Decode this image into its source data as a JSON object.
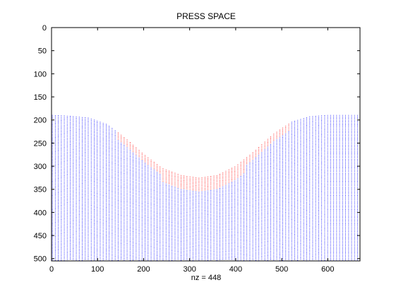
{
  "chart_data": {
    "type": "scatter",
    "title": "PRESS SPACE",
    "xlabel": "nz = 448",
    "ylabel": "",
    "xlim": [
      0,
      670
    ],
    "ylim": [
      0,
      505
    ],
    "y_reversed": true,
    "grid": false,
    "legend": "none",
    "x_ticks": [
      0,
      100,
      200,
      300,
      400,
      500,
      600
    ],
    "y_ticks": [
      0,
      50,
      100,
      150,
      200,
      250,
      300,
      350,
      400,
      450,
      500
    ],
    "colors": {
      "normal": "#0000ff",
      "nonzero": "#ff0000"
    },
    "surface_profile": [
      [
        0,
        190
      ],
      [
        40,
        192
      ],
      [
        80,
        196
      ],
      [
        120,
        210
      ],
      [
        160,
        240
      ],
      [
        200,
        275
      ],
      [
        240,
        305
      ],
      [
        280,
        320
      ],
      [
        320,
        326
      ],
      [
        360,
        320
      ],
      [
        400,
        300
      ],
      [
        440,
        268
      ],
      [
        480,
        232
      ],
      [
        520,
        205
      ],
      [
        560,
        193
      ],
      [
        600,
        190
      ],
      [
        640,
        190
      ],
      [
        670,
        190
      ]
    ],
    "series": [
      {
        "name": "blue",
        "marker": "dot",
        "description_color": "#0000ff"
      },
      {
        "name": "red",
        "marker": "dot",
        "description_color": "#ff0000"
      }
    ]
  }
}
